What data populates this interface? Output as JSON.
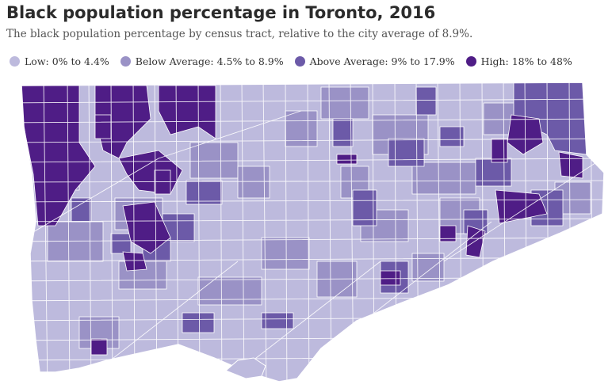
{
  "title": "Black population percentage in Toronto, 2016",
  "subtitle": "The black population percentage by census tract, relative to the city average of 8.9%.",
  "legend": [
    {
      "label": "Low: 0% to 4.4%",
      "color": "#bdbadd"
    },
    {
      "label": "Below Average: 4.5% to 8.9%",
      "color": "#9a92c6"
    },
    {
      "label": "Above Average: 9% to 17.9%",
      "color": "#6c5aa8"
    },
    {
      "label": "High: 18% to 48%",
      "color": "#4f1d86"
    }
  ],
  "colors": {
    "boundary": "#ffffff",
    "water": "#ffffff"
  }
}
